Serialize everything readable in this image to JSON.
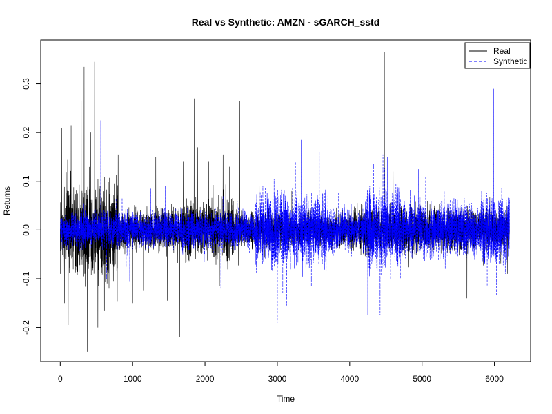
{
  "chart_data": {
    "type": "line",
    "title": "Real vs Synthetic: AMZN - sGARCH_sstd",
    "xlabel": "Time",
    "ylabel": "Returns",
    "xlim": [
      -270,
      6500
    ],
    "ylim": [
      -0.27,
      0.39
    ],
    "x_ticks": [
      0,
      1000,
      2000,
      3000,
      4000,
      5000,
      6000
    ],
    "y_ticks": [
      -0.2,
      -0.1,
      0.0,
      0.1,
      0.2,
      0.3
    ],
    "x_tick_labels": [
      "0",
      "1000",
      "2000",
      "3000",
      "4000",
      "5000",
      "6000"
    ],
    "y_tick_labels": [
      "-0.2",
      "-0.1",
      "0.0",
      "0.1",
      "0.2",
      "0.3"
    ],
    "n_points": 6210,
    "grid": false,
    "legend_position": "top-right",
    "series": [
      {
        "name": "Real",
        "color": "#000000",
        "dash": "solid",
        "spikes": [
          [
            20,
            0.21
          ],
          [
            60,
            -0.15
          ],
          [
            110,
            -0.195
          ],
          [
            150,
            0.215
          ],
          [
            230,
            0.19
          ],
          [
            290,
            0.265
          ],
          [
            330,
            0.335
          ],
          [
            375,
            -0.25
          ],
          [
            420,
            0.2
          ],
          [
            475,
            0.345
          ],
          [
            520,
            -0.2
          ],
          [
            610,
            -0.165
          ],
          [
            800,
            0.155
          ],
          [
            1000,
            -0.15
          ],
          [
            1150,
            -0.125
          ],
          [
            1320,
            0.15
          ],
          [
            1480,
            -0.145
          ],
          [
            1650,
            -0.22
          ],
          [
            1700,
            0.14
          ],
          [
            1850,
            0.27
          ],
          [
            1900,
            0.17
          ],
          [
            2050,
            0.14
          ],
          [
            2200,
            -0.115
          ],
          [
            2250,
            0.155
          ],
          [
            2340,
            0.13
          ],
          [
            2480,
            0.265
          ],
          [
            2750,
            0.09
          ],
          [
            3200,
            0.08
          ],
          [
            4480,
            0.365
          ],
          [
            4600,
            0.12
          ],
          [
            5620,
            -0.14
          ],
          [
            6180,
            -0.09
          ]
        ],
        "segments": [
          {
            "from": 0,
            "to": 800,
            "amp": 0.085
          },
          {
            "from": 800,
            "to": 1700,
            "amp": 0.035
          },
          {
            "from": 1700,
            "to": 2400,
            "amp": 0.05
          },
          {
            "from": 2400,
            "to": 4000,
            "amp": 0.03
          },
          {
            "from": 4000,
            "to": 5000,
            "amp": 0.04
          },
          {
            "from": 5000,
            "to": 6210,
            "amp": 0.035
          }
        ]
      },
      {
        "name": "Synthetic",
        "color": "#0000ff",
        "dash": "dashed",
        "spikes": [
          [
            480,
            0.17
          ],
          [
            560,
            0.225
          ],
          [
            640,
            -0.1
          ],
          [
            960,
            -0.105
          ],
          [
            1250,
            0.085
          ],
          [
            1450,
            0.09
          ],
          [
            2220,
            -0.12
          ],
          [
            2800,
            0.09
          ],
          [
            3000,
            -0.19
          ],
          [
            3130,
            -0.155
          ],
          [
            3250,
            0.14
          ],
          [
            3330,
            0.185
          ],
          [
            3470,
            -0.115
          ],
          [
            3580,
            0.16
          ],
          [
            4250,
            -0.175
          ],
          [
            4330,
            0.135
          ],
          [
            4420,
            -0.175
          ],
          [
            4460,
            0.155
          ],
          [
            4520,
            0.15
          ],
          [
            4700,
            -0.1
          ],
          [
            4950,
            0.125
          ],
          [
            5050,
            0.11
          ],
          [
            5320,
            -0.08
          ],
          [
            5900,
            -0.115
          ],
          [
            5990,
            0.29
          ],
          [
            6030,
            -0.135
          ],
          [
            6150,
            -0.09
          ]
        ],
        "segments": [
          {
            "from": 0,
            "to": 1000,
            "amp": 0.03
          },
          {
            "from": 1000,
            "to": 2700,
            "amp": 0.03
          },
          {
            "from": 2700,
            "to": 3700,
            "amp": 0.06
          },
          {
            "from": 3700,
            "to": 4200,
            "amp": 0.035
          },
          {
            "from": 4200,
            "to": 4700,
            "amp": 0.065
          },
          {
            "from": 4700,
            "to": 5800,
            "amp": 0.045
          },
          {
            "from": 5800,
            "to": 6210,
            "amp": 0.06
          }
        ]
      }
    ]
  }
}
